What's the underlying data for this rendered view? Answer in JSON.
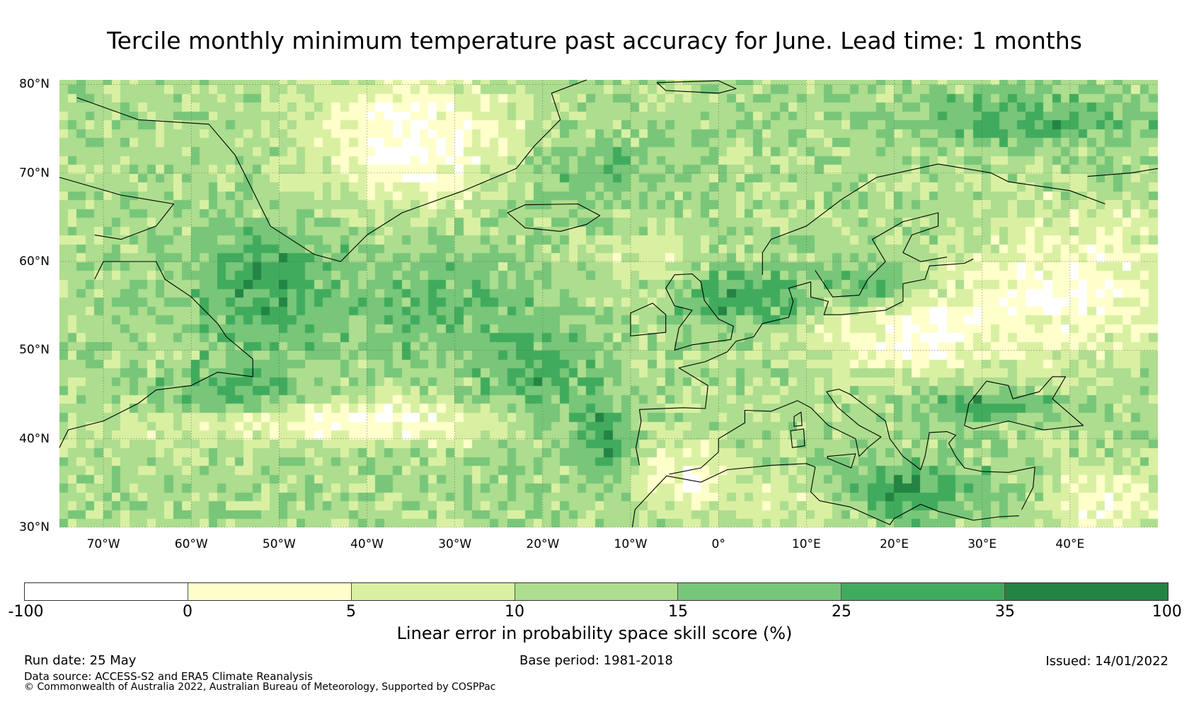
{
  "title": "Tercile monthly minimum temperature past accuracy for June. Lead time: 1 months",
  "map": {
    "extent": {
      "lon_min": -75,
      "lon_max": 50,
      "lat_min": 30,
      "lat_max": 80.5
    },
    "lat_labels": [
      "80°N",
      "70°N",
      "60°N",
      "50°N",
      "40°N",
      "30°N"
    ],
    "lat_values": [
      80,
      70,
      60,
      50,
      40,
      30
    ],
    "lon_labels": [
      "70°W",
      "60°W",
      "50°W",
      "40°W",
      "30°W",
      "20°W",
      "10°W",
      "0°",
      "10°E",
      "20°E",
      "30°E",
      "40°E"
    ],
    "lon_values": [
      -70,
      -60,
      -50,
      -40,
      -30,
      -20,
      -10,
      0,
      10,
      20,
      30,
      40
    ],
    "gridlines": true,
    "coastline_color": "#000000"
  },
  "colorbar": {
    "ticks": [
      "-100",
      "0",
      "5",
      "10",
      "15",
      "25",
      "35",
      "100"
    ],
    "colors": [
      "#ffffff",
      "#ffffcc",
      "#d9f0a3",
      "#addd8e",
      "#78c679",
      "#41ab5d",
      "#238443"
    ],
    "label": "Linear error in probability space skill score (%)"
  },
  "footer": {
    "run_date": "Run date: 25 May",
    "base_period": "Base period: 1981-2018",
    "issued": "Issued: 14/01/2022",
    "source": "Data source: ACCESS-S2 and ERA5 Climate Reanalysis",
    "copyright": "© Commonwealth of Australia 2022, Australian Bureau of Meteorology, Supported by COSPPac"
  }
}
